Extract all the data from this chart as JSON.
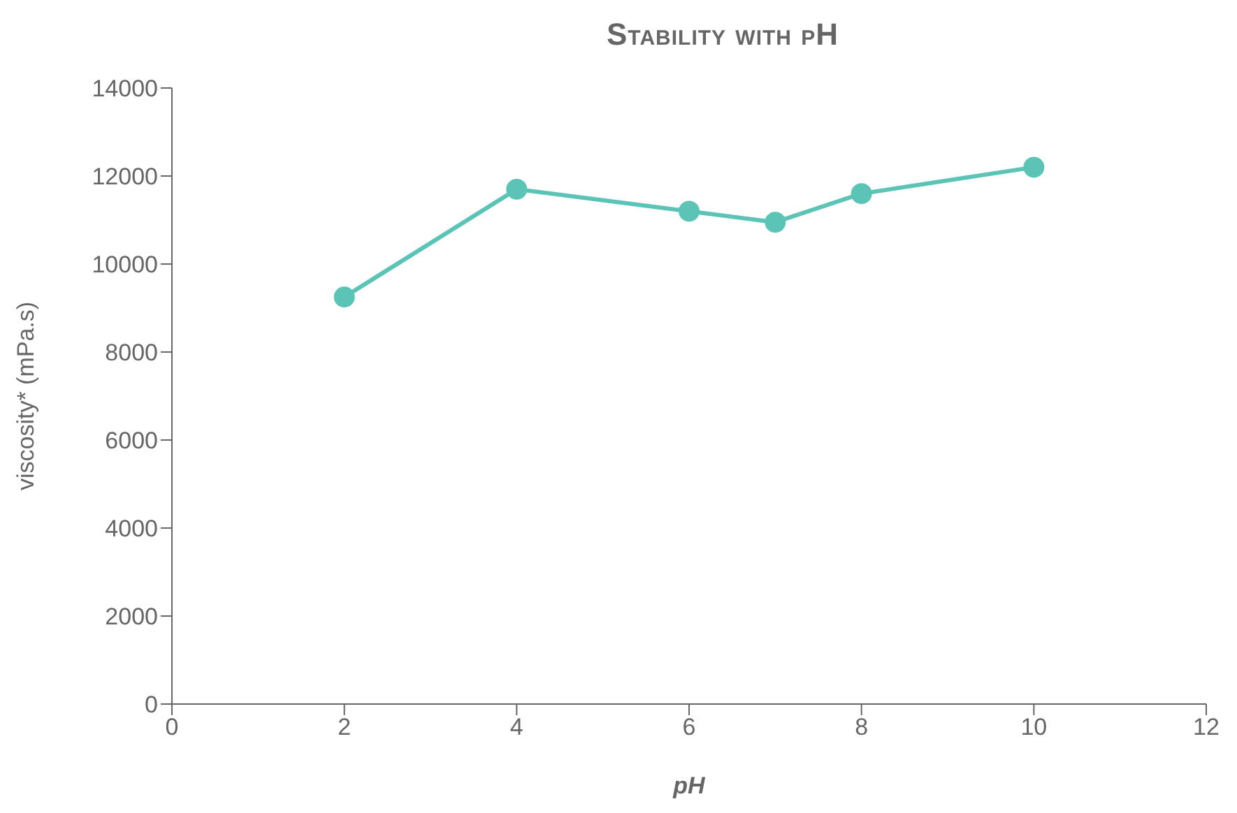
{
  "chart_data": {
    "type": "line",
    "title": "Stability with pH",
    "xlabel": "pH",
    "ylabel": "viscosity* (mPa.s)",
    "x": [
      2,
      4,
      6,
      7,
      8,
      10
    ],
    "series": [
      {
        "color": "#5bc4b6",
        "values": [
          9250,
          11700,
          11200,
          10950,
          11600,
          12200
        ]
      }
    ],
    "xlim": [
      0,
      12
    ],
    "xticks": [
      0,
      2,
      4,
      6,
      8,
      10,
      12
    ],
    "ylim": [
      0,
      14000
    ],
    "yticks": [
      0,
      2000,
      4000,
      6000,
      8000,
      10000,
      12000,
      14000
    ],
    "grid": false,
    "legend": false,
    "marker": "circle",
    "line_style": "solid"
  }
}
